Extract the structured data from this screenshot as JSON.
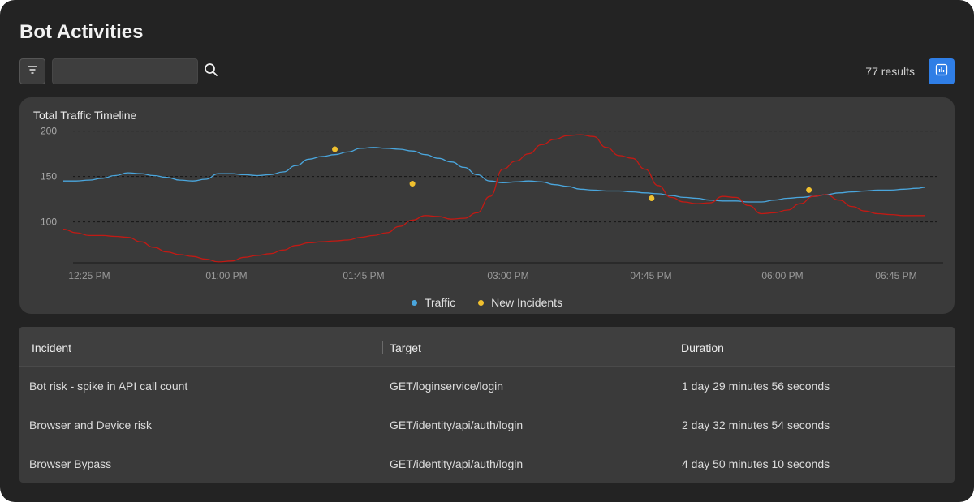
{
  "page": {
    "title": "Bot Activities"
  },
  "toolbar": {
    "filter_icon": "filter-icon",
    "search_placeholder": "",
    "search_value": "",
    "search_icon": "search-icon",
    "results_text": "77 results",
    "chart_toggle_icon": "bar-chart-icon"
  },
  "colors": {
    "traffic": "#4aa6dd",
    "incident_line": "#c21a14",
    "incident_marker": "#f0c02e",
    "accent": "#2f7ee6"
  },
  "chart_data": {
    "type": "line",
    "title": "Total Traffic Timeline",
    "xlabel": "",
    "ylabel": "",
    "x_tick_labels": [
      "12:25 PM",
      "01:00 PM",
      "01:45 PM",
      "03:00 PM",
      "04:45 PM",
      "06:00 PM",
      "06:45 PM"
    ],
    "y_ticks": [
      100,
      150,
      200
    ],
    "ylim": [
      55,
      205
    ],
    "grid": true,
    "legend_position": "bottom-center",
    "series": [
      {
        "name": "Traffic",
        "x": [
          0,
          6,
          12,
          18,
          24,
          30,
          36,
          42,
          48,
          54,
          60,
          66,
          72,
          78,
          84,
          90,
          96,
          102,
          108,
          114,
          120,
          126,
          132,
          138,
          144,
          150,
          156,
          162,
          168,
          174,
          180,
          186,
          192,
          198,
          204,
          210,
          216,
          222,
          228,
          234,
          240,
          246,
          252,
          258,
          264,
          270,
          276,
          282,
          288,
          294,
          300,
          306,
          312,
          318,
          324,
          330,
          336,
          342,
          348,
          354,
          360,
          366,
          372,
          378,
          384,
          390,
          396,
          400
        ],
        "values": [
          145,
          145,
          146,
          148,
          151,
          154,
          153,
          151,
          149,
          146,
          145,
          147,
          153,
          153,
          152,
          151,
          152,
          155,
          162,
          169,
          172,
          174,
          177,
          181,
          182,
          181,
          180,
          178,
          174,
          170,
          166,
          160,
          152,
          145,
          143,
          144,
          145,
          144,
          141,
          139,
          136,
          135,
          134,
          134,
          133,
          132,
          131,
          129,
          127,
          126,
          124,
          123,
          123,
          122,
          122,
          124,
          126,
          127,
          128,
          130,
          132,
          133,
          134,
          135,
          135,
          136,
          137,
          138
        ]
      },
      {
        "name": "New Incidents",
        "x": [
          0,
          6,
          12,
          18,
          24,
          30,
          36,
          42,
          48,
          54,
          60,
          66,
          72,
          78,
          84,
          90,
          96,
          102,
          108,
          114,
          120,
          126,
          132,
          138,
          144,
          150,
          156,
          162,
          168,
          174,
          180,
          186,
          192,
          198,
          204,
          210,
          216,
          222,
          228,
          234,
          240,
          246,
          252,
          258,
          264,
          270,
          276,
          282,
          288,
          294,
          300,
          306,
          312,
          318,
          324,
          330,
          336,
          342,
          348,
          354,
          360,
          366,
          372,
          378,
          384,
          390,
          396,
          400
        ],
        "values": [
          92,
          88,
          85,
          85,
          84,
          83,
          78,
          72,
          67,
          64,
          62,
          59,
          56,
          57,
          61,
          63,
          65,
          69,
          74,
          77,
          78,
          79,
          80,
          83,
          85,
          88,
          95,
          102,
          107,
          106,
          103,
          104,
          110,
          128,
          158,
          167,
          175,
          185,
          191,
          195,
          196,
          194,
          182,
          173,
          170,
          158,
          140,
          127,
          122,
          120,
          121,
          128,
          127,
          118,
          109,
          110,
          113,
          120,
          128,
          130,
          124,
          117,
          112,
          109,
          108,
          107,
          107,
          107
        ]
      }
    ],
    "incident_markers": {
      "x": [
        126,
        162,
        273,
        346
      ],
      "values": [
        180,
        142,
        126,
        135
      ]
    }
  },
  "table": {
    "columns": [
      "Incident",
      "Target",
      "Duration"
    ],
    "rows": [
      {
        "incident": "Bot risk - spike in API call count",
        "target": "GET/loginservice/login",
        "duration": "1 day 29 minutes 56 seconds"
      },
      {
        "incident": "Browser and Device risk",
        "target": "GET/identity/api/auth/login",
        "duration": "2 day 32 minutes 54 seconds"
      },
      {
        "incident": "Browser Bypass",
        "target": "GET/identity/api/auth/login",
        "duration": "4 day 50 minutes 10 seconds"
      }
    ]
  }
}
